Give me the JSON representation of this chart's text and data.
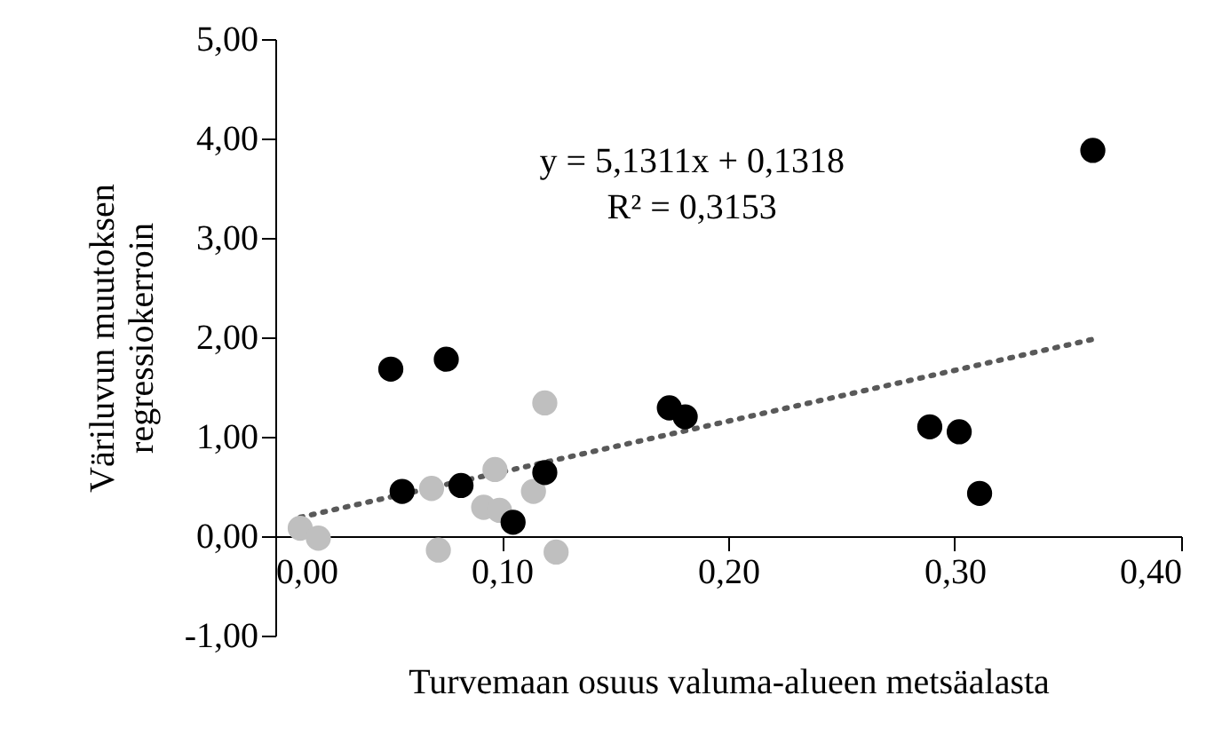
{
  "chart_data": {
    "type": "scatter",
    "xlabel": "Turvemaan osuus valuma-alueen metsäalasta",
    "ylabel": "Väriluvun muutoksen regressiokerroin",
    "marker": "circle",
    "grid": false,
    "xlim": [
      0,
      0.4
    ],
    "xticks": [
      {
        "value": 0,
        "label": "0,00"
      },
      {
        "value": 0.1,
        "label": "0,10"
      },
      {
        "value": 0.2,
        "label": "0,20"
      },
      {
        "value": 0.3,
        "label": "0,30"
      },
      {
        "value": 0.4,
        "label": "0,40"
      }
    ],
    "ylim": [
      -1,
      5
    ],
    "yticks": [
      {
        "value": -1,
        "label": "-1,00"
      },
      {
        "value": 0,
        "label": "0,00"
      },
      {
        "value": 1,
        "label": "1,00"
      },
      {
        "value": 2,
        "label": "2,00"
      },
      {
        "value": 3,
        "label": "3,00"
      },
      {
        "value": 4,
        "label": "4,00"
      },
      {
        "value": 5,
        "label": "5,00"
      }
    ],
    "series": [
      {
        "color": "#bfbfbf",
        "x": [
          0.011,
          0.019,
          0.069,
          0.072,
          0.097,
          0.092,
          0.099,
          0.114,
          0.119,
          0.124
        ],
        "values": [
          0.08,
          -0.02,
          0.48,
          -0.14,
          0.67,
          0.29,
          0.26,
          0.45,
          1.34,
          -0.16
        ]
      },
      {
        "color": "#000000",
        "x": [
          0.051,
          0.0755,
          0.056,
          0.082,
          0.119,
          0.105,
          0.174,
          0.181,
          0.289,
          0.302,
          0.311,
          0.361
        ],
        "values": [
          1.68,
          1.78,
          0.45,
          0.51,
          0.64,
          0.14,
          1.29,
          1.2,
          1.1,
          1.05,
          0.43,
          3.88
        ]
      },
      {
        "type": "line",
        "marker": "none",
        "line_style": "dotted",
        "color": "#595959",
        "x": [
          0.011,
          0.361
        ],
        "values": [
          0.19,
          1.98
        ]
      }
    ],
    "annotations": [
      "y = 5,1311x + 0,1318",
      "R² = 0,3153"
    ]
  }
}
